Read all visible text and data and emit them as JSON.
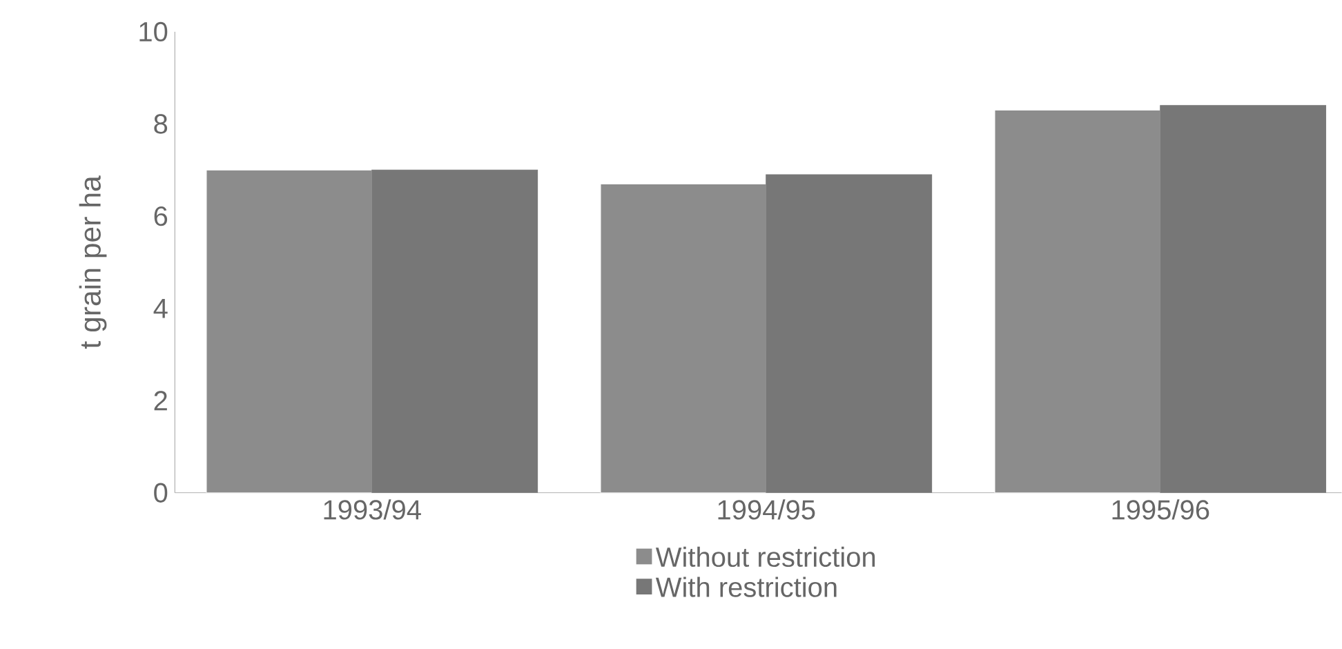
{
  "chart_data": {
    "type": "bar",
    "ylabel": "t grain per ha",
    "categories": [
      "1993/94",
      "1994/95",
      "1995/96"
    ],
    "series": [
      {
        "name": "Without restriction",
        "color": "#8c8c8c",
        "values": [
          7.0,
          6.7,
          8.3
        ]
      },
      {
        "name": "With restriction",
        "color": "#777777",
        "values": [
          7.0,
          6.9,
          8.4
        ]
      }
    ],
    "ylim": [
      0,
      10
    ],
    "yticks": [
      0,
      2,
      4,
      6,
      8,
      10
    ],
    "grid": false,
    "legend": "bottom"
  }
}
